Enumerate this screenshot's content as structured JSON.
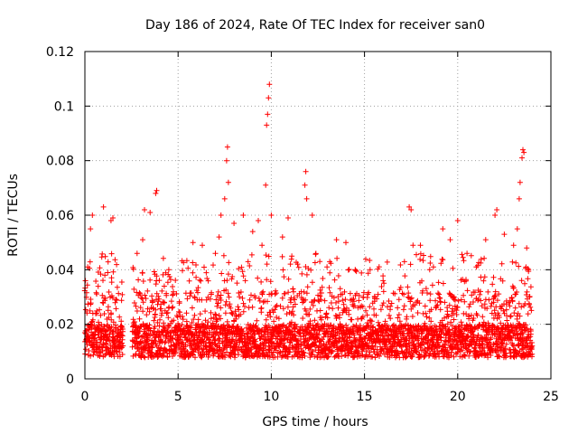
{
  "chart_data": {
    "type": "scatter",
    "title": "Day 186 of 2024, Rate Of TEC Index for receiver san0",
    "xlabel": "GPS time / hours",
    "ylabel": "ROTI / TECUs",
    "xlim": [
      0,
      25
    ],
    "ylim": [
      0,
      0.12
    ],
    "xticks": [
      "0",
      "5",
      "10",
      "15",
      "20",
      "25"
    ],
    "yticks": [
      "0",
      "0.02",
      "0.04",
      "0.06",
      "0.08",
      "0.1",
      "0.12"
    ],
    "grid": true,
    "marker": "+",
    "color": "#ff0000",
    "series": [
      {
        "name": "ROTI",
        "segments": [
          [
            0.0,
            2.05
          ],
          [
            2.55,
            24.0
          ]
        ],
        "baseline": 0.012,
        "notable_points": [
          {
            "x": 0.15,
            "y": 0.041
          },
          {
            "x": 0.3,
            "y": 0.055
          },
          {
            "x": 0.4,
            "y": 0.06
          },
          {
            "x": 1.0,
            "y": 0.063
          },
          {
            "x": 1.4,
            "y": 0.058
          },
          {
            "x": 1.5,
            "y": 0.059
          },
          {
            "x": 2.8,
            "y": 0.046
          },
          {
            "x": 3.1,
            "y": 0.051
          },
          {
            "x": 3.2,
            "y": 0.062
          },
          {
            "x": 3.5,
            "y": 0.061
          },
          {
            "x": 3.8,
            "y": 0.068
          },
          {
            "x": 3.85,
            "y": 0.069
          },
          {
            "x": 5.8,
            "y": 0.05
          },
          {
            "x": 6.3,
            "y": 0.049
          },
          {
            "x": 7.0,
            "y": 0.046
          },
          {
            "x": 7.2,
            "y": 0.052
          },
          {
            "x": 7.3,
            "y": 0.06
          },
          {
            "x": 7.5,
            "y": 0.066
          },
          {
            "x": 7.6,
            "y": 0.08
          },
          {
            "x": 7.65,
            "y": 0.085
          },
          {
            "x": 7.7,
            "y": 0.072
          },
          {
            "x": 8.0,
            "y": 0.057
          },
          {
            "x": 8.5,
            "y": 0.06
          },
          {
            "x": 9.0,
            "y": 0.054
          },
          {
            "x": 9.3,
            "y": 0.058
          },
          {
            "x": 9.5,
            "y": 0.049
          },
          {
            "x": 9.7,
            "y": 0.071
          },
          {
            "x": 9.75,
            "y": 0.093
          },
          {
            "x": 9.8,
            "y": 0.097
          },
          {
            "x": 9.85,
            "y": 0.103
          },
          {
            "x": 9.9,
            "y": 0.108
          },
          {
            "x": 10.0,
            "y": 0.06
          },
          {
            "x": 10.6,
            "y": 0.052
          },
          {
            "x": 10.9,
            "y": 0.059
          },
          {
            "x": 11.1,
            "y": 0.045
          },
          {
            "x": 11.8,
            "y": 0.071
          },
          {
            "x": 11.85,
            "y": 0.076
          },
          {
            "x": 11.9,
            "y": 0.066
          },
          {
            "x": 12.2,
            "y": 0.06
          },
          {
            "x": 12.6,
            "y": 0.043
          },
          {
            "x": 13.5,
            "y": 0.051
          },
          {
            "x": 14.0,
            "y": 0.05
          },
          {
            "x": 14.5,
            "y": 0.04
          },
          {
            "x": 15.3,
            "y": 0.04
          },
          {
            "x": 16.0,
            "y": 0.036
          },
          {
            "x": 17.4,
            "y": 0.063
          },
          {
            "x": 17.5,
            "y": 0.062
          },
          {
            "x": 17.6,
            "y": 0.049
          },
          {
            "x": 18.0,
            "y": 0.049
          },
          {
            "x": 18.5,
            "y": 0.04
          },
          {
            "x": 19.2,
            "y": 0.055
          },
          {
            "x": 19.6,
            "y": 0.051
          },
          {
            "x": 20.0,
            "y": 0.058
          },
          {
            "x": 20.5,
            "y": 0.046
          },
          {
            "x": 21.0,
            "y": 0.041
          },
          {
            "x": 21.5,
            "y": 0.051
          },
          {
            "x": 22.0,
            "y": 0.06
          },
          {
            "x": 22.1,
            "y": 0.062
          },
          {
            "x": 22.5,
            "y": 0.053
          },
          {
            "x": 23.0,
            "y": 0.049
          },
          {
            "x": 23.2,
            "y": 0.055
          },
          {
            "x": 23.3,
            "y": 0.066
          },
          {
            "x": 23.35,
            "y": 0.072
          },
          {
            "x": 23.45,
            "y": 0.081
          },
          {
            "x": 23.5,
            "y": 0.084
          },
          {
            "x": 23.55,
            "y": 0.083
          },
          {
            "x": 23.7,
            "y": 0.048
          },
          {
            "x": 23.8,
            "y": 0.04
          }
        ]
      }
    ]
  }
}
